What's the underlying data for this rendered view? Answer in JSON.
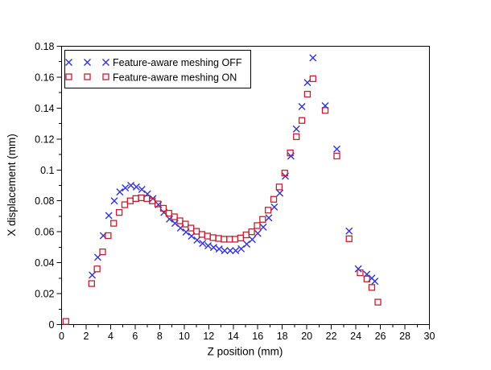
{
  "chart_data": {
    "type": "scatter",
    "title": "",
    "xlabel": "Z position (mm)",
    "ylabel": "X displacement (mm)",
    "xlim": [
      0,
      30
    ],
    "ylim": [
      0,
      0.18
    ],
    "x_tick_step": 2,
    "x_minor_step": 1,
    "y_tick_step": 0.02,
    "y_minor_step": 0.01,
    "x_tick_labels": [
      "0",
      "2",
      "4",
      "6",
      "8",
      "10",
      "12",
      "14",
      "16",
      "18",
      "20",
      "22",
      "24",
      "26",
      "28",
      "30"
    ],
    "y_tick_labels": [
      "0",
      "0.02",
      "0.04",
      "0.06",
      "0.08",
      "0.1",
      "0.12",
      "0.14",
      "0.16",
      "0.18"
    ],
    "grid": false,
    "legend_position": "top-left",
    "axis_color": "#000000",
    "background_color": "#ffffff",
    "series": [
      {
        "name": "Feature-aware meshing OFF",
        "marker": "x",
        "color": "#3333cc",
        "points": [
          [
            2.5,
            0.032
          ],
          [
            2.95,
            0.0435
          ],
          [
            3.4,
            0.0575
          ],
          [
            3.85,
            0.0705
          ],
          [
            4.3,
            0.08
          ],
          [
            4.75,
            0.0858
          ],
          [
            5.2,
            0.0884
          ],
          [
            5.65,
            0.09
          ],
          [
            6.1,
            0.089
          ],
          [
            6.55,
            0.0874
          ],
          [
            7.0,
            0.0845
          ],
          [
            7.45,
            0.0815
          ],
          [
            7.9,
            0.0775
          ],
          [
            8.35,
            0.0725
          ],
          [
            8.8,
            0.0682
          ],
          [
            9.25,
            0.0655
          ],
          [
            9.7,
            0.0624
          ],
          [
            10.15,
            0.0598
          ],
          [
            10.6,
            0.0572
          ],
          [
            11.05,
            0.0546
          ],
          [
            11.5,
            0.0525
          ],
          [
            11.95,
            0.051
          ],
          [
            12.4,
            0.0499
          ],
          [
            12.85,
            0.0489
          ],
          [
            13.3,
            0.0478
          ],
          [
            13.75,
            0.0478
          ],
          [
            14.2,
            0.0478
          ],
          [
            14.65,
            0.049
          ],
          [
            15.1,
            0.052
          ],
          [
            15.55,
            0.055
          ],
          [
            16.0,
            0.059
          ],
          [
            16.45,
            0.063
          ],
          [
            16.9,
            0.069
          ],
          [
            17.35,
            0.076
          ],
          [
            17.8,
            0.085
          ],
          [
            18.25,
            0.096
          ],
          [
            18.7,
            0.109
          ],
          [
            19.15,
            0.1265
          ],
          [
            19.6,
            0.141
          ],
          [
            20.05,
            0.1565
          ],
          [
            20.5,
            0.1725
          ],
          [
            21.5,
            0.1415
          ],
          [
            22.45,
            0.1135
          ],
          [
            23.45,
            0.0605
          ],
          [
            24.2,
            0.036
          ],
          [
            24.9,
            0.0325
          ],
          [
            25.3,
            0.03
          ],
          [
            25.55,
            0.028
          ]
        ]
      },
      {
        "name": "Feature-aware meshing ON",
        "marker": "square",
        "color": "#c02033",
        "points": [
          [
            0.35,
            0.002
          ],
          [
            2.45,
            0.0265
          ],
          [
            2.9,
            0.036
          ],
          [
            3.35,
            0.047
          ],
          [
            3.8,
            0.0575
          ],
          [
            4.25,
            0.0655
          ],
          [
            4.7,
            0.0725
          ],
          [
            5.15,
            0.0775
          ],
          [
            5.6,
            0.08
          ],
          [
            6.05,
            0.0815
          ],
          [
            6.5,
            0.082
          ],
          [
            6.95,
            0.0815
          ],
          [
            7.4,
            0.08
          ],
          [
            7.85,
            0.078
          ],
          [
            8.3,
            0.0752
          ],
          [
            8.75,
            0.072
          ],
          [
            9.2,
            0.0697
          ],
          [
            9.65,
            0.0671
          ],
          [
            10.1,
            0.065
          ],
          [
            10.55,
            0.0624
          ],
          [
            11.0,
            0.0603
          ],
          [
            11.45,
            0.0583
          ],
          [
            11.9,
            0.0572
          ],
          [
            12.35,
            0.0562
          ],
          [
            12.8,
            0.0557
          ],
          [
            13.25,
            0.0552
          ],
          [
            13.7,
            0.0552
          ],
          [
            14.15,
            0.0552
          ],
          [
            14.6,
            0.056
          ],
          [
            15.05,
            0.058
          ],
          [
            15.5,
            0.06
          ],
          [
            15.95,
            0.064
          ],
          [
            16.4,
            0.068
          ],
          [
            16.85,
            0.074
          ],
          [
            17.3,
            0.081
          ],
          [
            17.75,
            0.089
          ],
          [
            18.2,
            0.098
          ],
          [
            18.65,
            0.111
          ],
          [
            19.15,
            0.1215
          ],
          [
            19.6,
            0.132
          ],
          [
            20.05,
            0.149
          ],
          [
            20.5,
            0.159
          ],
          [
            21.5,
            0.1385
          ],
          [
            22.45,
            0.109
          ],
          [
            23.45,
            0.0555
          ],
          [
            24.35,
            0.0335
          ],
          [
            24.9,
            0.0295
          ],
          [
            25.3,
            0.024
          ],
          [
            25.8,
            0.0145
          ]
        ]
      }
    ]
  }
}
